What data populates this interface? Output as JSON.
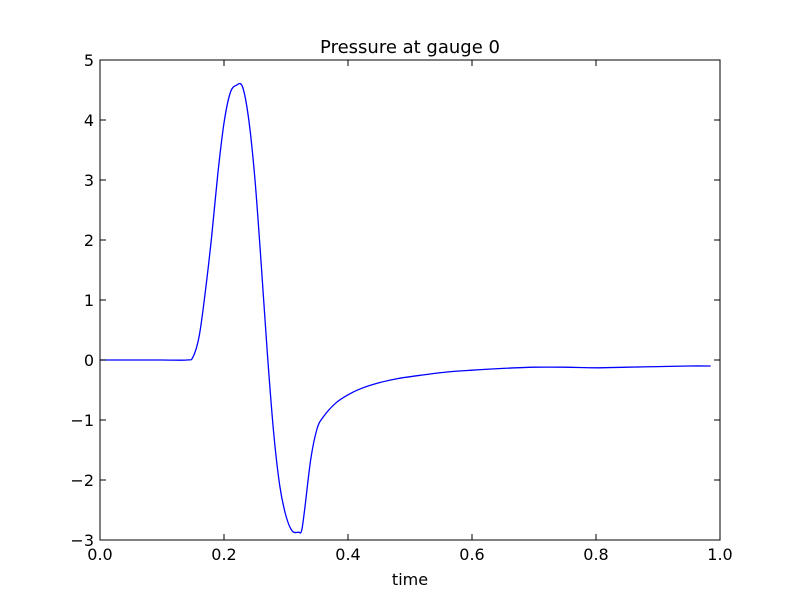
{
  "chart_data": {
    "type": "line",
    "title": "Pressure at gauge 0",
    "xlabel": "time",
    "ylabel": "",
    "xlim": [
      0.0,
      1.0
    ],
    "ylim": [
      -3,
      5
    ],
    "grid": false,
    "x_ticks": [
      "0.0",
      "0.2",
      "0.4",
      "0.6",
      "0.8",
      "1.0"
    ],
    "y_ticks": [
      "5",
      "4",
      "3",
      "2",
      "1",
      "0",
      "−1",
      "−2",
      "−3"
    ],
    "colors": {
      "line": "#0000ff",
      "axes": "#000000",
      "background": "#ffffff"
    },
    "series": [
      {
        "x": [
          0.0,
          0.05,
          0.1,
          0.14,
          0.15,
          0.16,
          0.17,
          0.18,
          0.19,
          0.2,
          0.21,
          0.22,
          0.23,
          0.24,
          0.25,
          0.26,
          0.27,
          0.28,
          0.29,
          0.3,
          0.31,
          0.32,
          0.325,
          0.33,
          0.34,
          0.35,
          0.36,
          0.38,
          0.4,
          0.42,
          0.45,
          0.48,
          0.52,
          0.56,
          0.6,
          0.65,
          0.7,
          0.75,
          0.8,
          0.85,
          0.9,
          0.95,
          0.985
        ],
        "y": [
          0.0,
          0.0,
          0.0,
          0.0,
          0.05,
          0.4,
          1.15,
          2.05,
          3.1,
          3.95,
          4.45,
          4.58,
          4.55,
          4.0,
          3.0,
          1.6,
          0.1,
          -1.2,
          -2.1,
          -2.6,
          -2.85,
          -2.87,
          -2.85,
          -2.5,
          -1.65,
          -1.15,
          -0.95,
          -0.72,
          -0.58,
          -0.48,
          -0.38,
          -0.31,
          -0.25,
          -0.2,
          -0.17,
          -0.14,
          -0.12,
          -0.12,
          -0.13,
          -0.12,
          -0.11,
          -0.1,
          -0.1
        ]
      }
    ]
  }
}
